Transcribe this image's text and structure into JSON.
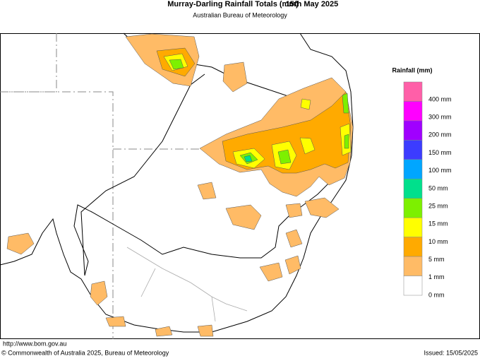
{
  "header": {
    "title": "Murray-Darling Rainfall Totals (mm)",
    "date": "15th May 2025",
    "subtitle": "Australian Bureau of Meteorology"
  },
  "legend": {
    "title": "Rainfall (mm)",
    "colors": [
      "#ff5fa8",
      "#ff00ff",
      "#a000ff",
      "#3c3cff",
      "#00a6ff",
      "#00e08c",
      "#7df000",
      "#ffff00",
      "#ffaa00",
      "#ffbb66",
      "#ffffff"
    ],
    "labels": [
      "400 mm",
      "300 mm",
      "200 mm",
      "150 mm",
      "100 mm",
      "50 mm",
      "25 mm",
      "15 mm",
      "10 mm",
      "5 mm",
      "1 mm",
      "0 mm"
    ]
  },
  "footer": {
    "url": "http://www.bom.gov.au",
    "copyright": "© Commonwealth of Australia 2025, Bureau of Meteorology",
    "issued": "Issued: 15/05/2025"
  }
}
